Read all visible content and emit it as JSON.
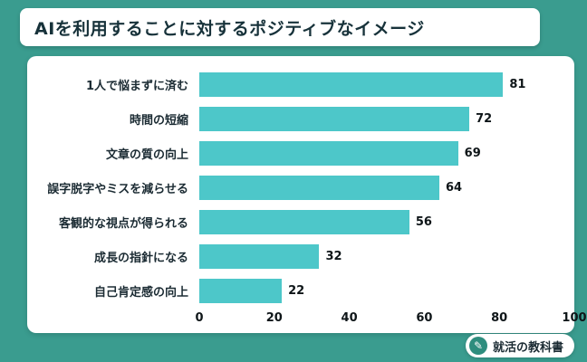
{
  "title": "AIを利用することに対するポジティブなイメージ",
  "chart_data": {
    "type": "bar",
    "orientation": "horizontal",
    "title": "AIを利用することに対するポジティブなイメージ",
    "categories": [
      "1人で悩まずに済む",
      "時間の短縮",
      "文章の質の向上",
      "誤字脱字やミスを減らせる",
      "客観的な視点が得られる",
      "成長の指針になる",
      "自己肯定感の向上"
    ],
    "values": [
      81,
      72,
      69,
      64,
      56,
      32,
      22
    ],
    "xlim": [
      0,
      100
    ],
    "x_ticks": [
      0,
      20,
      40,
      60,
      80,
      100
    ],
    "grid": false,
    "legend": "none",
    "value_labels": true,
    "bar_color": "#4dc7c9"
  },
  "colors": {
    "background": "#3a9c8f",
    "card": "#ffffff",
    "bar": "#4dc7c9",
    "title_text": "#17323a"
  },
  "logo": {
    "text": "就活の教科書",
    "icon": "pen-icon"
  }
}
